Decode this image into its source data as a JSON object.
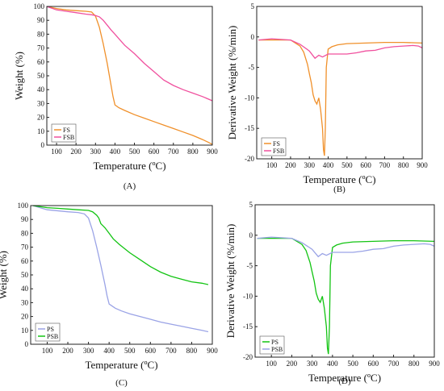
{
  "colors": {
    "FS": "#f0902a",
    "FSB": "#f0509e",
    "PS": "#13c413",
    "PSB": "#9aa3e6"
  },
  "chart_data": [
    {
      "panel": "(A)",
      "type": "line",
      "xlabel": "Temperature (ºC)",
      "ylabel": "Weight (%)",
      "xlim": [
        50,
        900
      ],
      "ylim": [
        0,
        100
      ],
      "xticks": [
        "100",
        "200",
        "300",
        "400",
        "500",
        "600",
        "700",
        "800",
        "900"
      ],
      "yticks": [
        "0",
        "10",
        "20",
        "30",
        "40",
        "50",
        "60",
        "70",
        "80",
        "90",
        "100"
      ],
      "legend_position": "bottom-left",
      "series": [
        {
          "name": "FS",
          "color_key": "FS",
          "x": [
            50,
            100,
            150,
            200,
            250,
            280,
            300,
            320,
            340,
            360,
            375,
            390,
            400,
            420,
            450,
            500,
            550,
            600,
            650,
            700,
            750,
            800,
            850,
            880,
            900
          ],
          "y": [
            100,
            98.5,
            97.5,
            97,
            96.5,
            96,
            93,
            85,
            73,
            59,
            47,
            35,
            29,
            27,
            25,
            22,
            19.5,
            17,
            14.5,
            12,
            9.5,
            7,
            4,
            2,
            0.5
          ]
        },
        {
          "name": "FSB",
          "color_key": "FSB",
          "x": [
            50,
            100,
            150,
            200,
            250,
            280,
            300,
            320,
            340,
            360,
            380,
            400,
            425,
            450,
            500,
            550,
            600,
            650,
            700,
            750,
            800,
            850,
            900
          ],
          "y": [
            100,
            97.5,
            96.5,
            95.5,
            94.5,
            94,
            93.5,
            92.5,
            90,
            86.5,
            83,
            80,
            76,
            72,
            66,
            59,
            53,
            47,
            43,
            40,
            37.5,
            35,
            32
          ]
        }
      ]
    },
    {
      "panel": "(B)",
      "type": "line",
      "xlabel": "Temperature (ºC)",
      "ylabel": "Derivative Weight (%/min)",
      "xlim": [
        20,
        900
      ],
      "ylim": [
        -20,
        5
      ],
      "xticks": [
        "100",
        "200",
        "300",
        "400",
        "500",
        "600",
        "700",
        "800",
        "900"
      ],
      "yticks": [
        "5",
        "0",
        "-5",
        "-10",
        "-15",
        "-20"
      ],
      "legend_position": "bottom-left",
      "series": [
        {
          "name": "FS",
          "color_key": "FS",
          "x": [
            30,
            100,
            200,
            250,
            270,
            290,
            300,
            310,
            320,
            330,
            340,
            350,
            360,
            370,
            375,
            380,
            385,
            390,
            400,
            420,
            450,
            500,
            600,
            700,
            800,
            900
          ],
          "y": [
            -0.5,
            -0.5,
            -0.5,
            -1.5,
            -2.5,
            -4.5,
            -6,
            -7.5,
            -9.5,
            -10.5,
            -11,
            -10,
            -12,
            -15,
            -18.5,
            -19.5,
            -15,
            -5,
            -2,
            -1.6,
            -1.3,
            -1.1,
            -1,
            -0.9,
            -0.9,
            -1
          ]
        },
        {
          "name": "FSB",
          "color_key": "FSB",
          "x": [
            30,
            100,
            200,
            250,
            300,
            330,
            350,
            370,
            400,
            450,
            500,
            550,
            600,
            650,
            700,
            750,
            800,
            850,
            880,
            900
          ],
          "y": [
            -0.5,
            -0.3,
            -0.5,
            -1.2,
            -2.3,
            -3.5,
            -3,
            -3.3,
            -2.8,
            -2.8,
            -2.8,
            -2.6,
            -2.3,
            -2.2,
            -1.8,
            -1.6,
            -1.5,
            -1.4,
            -1.5,
            -1.8
          ]
        }
      ]
    },
    {
      "panel": "(C)",
      "type": "line",
      "xlabel": "Temperature (ºC)",
      "ylabel": "Weight (%)",
      "xlim": [
        20,
        900
      ],
      "ylim": [
        0,
        100
      ],
      "xticks": [
        "100",
        "200",
        "300",
        "400",
        "500",
        "600",
        "700",
        "800",
        "900"
      ],
      "yticks": [
        "0",
        "10",
        "20",
        "30",
        "40",
        "50",
        "60",
        "70",
        "80",
        "90",
        "100"
      ],
      "legend_position": "bottom-left",
      "series": [
        {
          "name": "PS",
          "color_key": "PSB",
          "x": [
            30,
            100,
            200,
            250,
            280,
            300,
            320,
            340,
            360,
            380,
            390,
            400,
            410,
            430,
            460,
            500,
            550,
            600,
            650,
            700,
            750,
            800,
            850,
            880
          ],
          "y": [
            100,
            97,
            95.5,
            95,
            94,
            91,
            82,
            70,
            57,
            43,
            35,
            29,
            28,
            26,
            24,
            22,
            20,
            18,
            16,
            14.5,
            13,
            11.5,
            10,
            9
          ]
        },
        {
          "name": "PSB",
          "color_key": "PS",
          "x": [
            30,
            100,
            150,
            200,
            250,
            300,
            320,
            340,
            350,
            360,
            380,
            400,
            420,
            450,
            500,
            550,
            600,
            650,
            700,
            750,
            800,
            850,
            880
          ],
          "y": [
            100,
            98.5,
            98,
            97.5,
            97,
            96.5,
            95.5,
            93,
            91,
            87,
            84,
            80,
            76,
            72,
            66,
            61,
            56,
            52,
            49,
            47,
            45,
            44,
            43
          ]
        }
      ]
    },
    {
      "panel": "(D)",
      "type": "line",
      "xlabel": "Temperature (ºC)",
      "ylabel": "Derivative Weight (%/min)",
      "xlim": [
        20,
        900
      ],
      "ylim": [
        -20,
        5
      ],
      "xticks": [
        "100",
        "200",
        "300",
        "400",
        "500",
        "600",
        "700",
        "800",
        "900"
      ],
      "yticks": [
        "5",
        "0",
        "-5",
        "-10",
        "-15",
        "-20"
      ],
      "legend_position": "bottom-left",
      "series": [
        {
          "name": "PS",
          "color_key": "PS",
          "x": [
            30,
            100,
            200,
            250,
            270,
            290,
            300,
            310,
            320,
            330,
            340,
            350,
            360,
            370,
            375,
            380,
            385,
            390,
            400,
            420,
            450,
            500,
            600,
            700,
            800,
            900
          ],
          "y": [
            -0.5,
            -0.5,
            -0.5,
            -1.5,
            -2.5,
            -4.5,
            -6,
            -7.5,
            -9.5,
            -10.5,
            -11,
            -10,
            -12,
            -15,
            -18.5,
            -19.5,
            -15,
            -5,
            -2,
            -1.6,
            -1.3,
            -1.1,
            -1,
            -0.9,
            -0.9,
            -1
          ]
        },
        {
          "name": "PSB",
          "color_key": "PSB",
          "x": [
            30,
            100,
            200,
            250,
            300,
            330,
            350,
            370,
            400,
            450,
            500,
            550,
            600,
            650,
            700,
            750,
            800,
            850,
            880,
            900
          ],
          "y": [
            -0.5,
            -0.3,
            -0.5,
            -1.2,
            -2.3,
            -3.5,
            -3,
            -3.3,
            -2.8,
            -2.8,
            -2.8,
            -2.6,
            -2.3,
            -2.2,
            -1.8,
            -1.6,
            -1.5,
            -1.4,
            -1.5,
            -1.8
          ]
        }
      ]
    }
  ]
}
